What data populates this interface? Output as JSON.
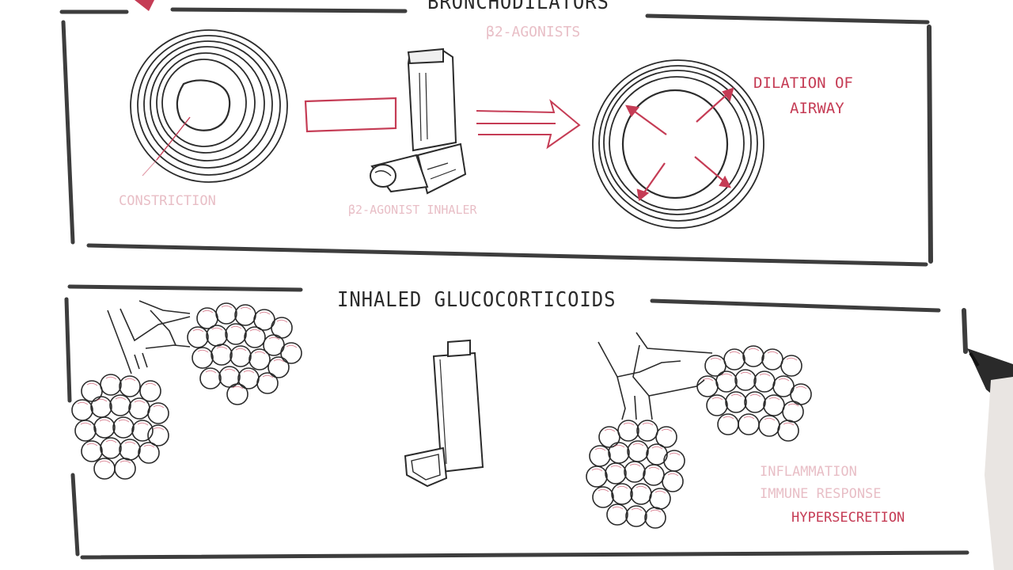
{
  "panels": {
    "bronchodilators": {
      "title": "BRONCHODILATORS",
      "subtitle": "β2-AGONISTS",
      "left_label": "CONSTRICTION",
      "inhaler_label": "β2-AGONIST INHALER",
      "right_label_line1": "DILATION OF",
      "right_label_line2": "AIRWAY"
    },
    "glucocorticoids": {
      "title": "INHALED GLUCOCORTICOIDS",
      "label_line1": "INFLAMMATION",
      "label_line2": "IMMUNE RESPONSE",
      "label_line3": "HYPERSECRETION"
    }
  },
  "colors": {
    "ink": "#2b2b2b",
    "marker_red": "#c53c55",
    "background": "#ffffff"
  },
  "icons": [
    "constricted-airway-icon",
    "metered-dose-inhaler-icon",
    "dilated-airway-icon",
    "bronchi-alveoli-icon",
    "marker-pen-icon"
  ]
}
